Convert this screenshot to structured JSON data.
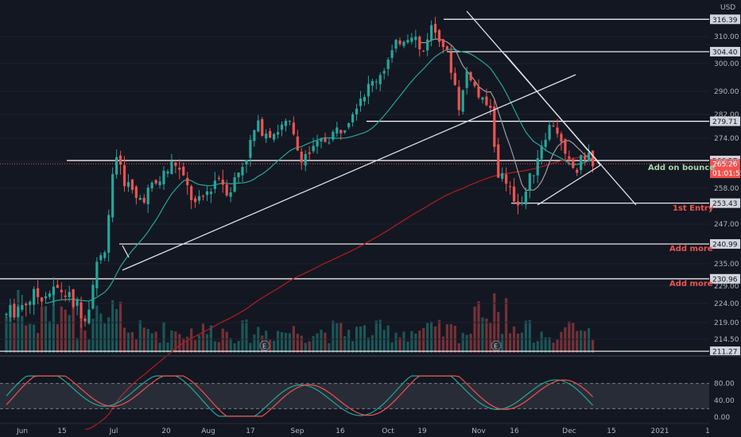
{
  "chart_data": {
    "type": "candlestick",
    "currency": "USD",
    "price_axis_ticks": [
      310,
      300,
      290,
      282,
      274,
      266,
      258,
      247,
      235,
      229,
      224,
      219,
      214.5
    ],
    "price_axis_tick_labels": [
      "310.00",
      "300.00",
      "290.00",
      "282.00",
      "274.00",
      "266.00",
      "258.00",
      "247.00",
      "235.00",
      "229.00",
      "224.00",
      "219.00",
      "214.50"
    ],
    "ylim": [
      210,
      318
    ],
    "x_tick_labels": [
      "Jun",
      "15",
      "Jul",
      "20",
      "Aug",
      "17",
      "Sep",
      "16",
      "Oct",
      "19",
      "Nov",
      "16",
      "Dec",
      "15",
      "2021",
      "1"
    ],
    "price_levels": [
      {
        "value": 316.39,
        "label": "316.39"
      },
      {
        "value": 304.4,
        "label": "304.40"
      },
      {
        "value": 279.71,
        "label": "279.71"
      },
      {
        "value": 266.27,
        "label": "266.27"
      },
      {
        "value": 253.43,
        "label": "253.43"
      },
      {
        "value": 240.99,
        "label": "240.99"
      },
      {
        "value": 230.96,
        "label": "230.96"
      },
      {
        "value": 211.27,
        "label": "211.27"
      }
    ],
    "last_price": {
      "value": 265.26,
      "label": "265.26",
      "countdown": "01:01:55"
    },
    "annotations": [
      {
        "text": "Add on bounce",
        "color": "#a5d6a7"
      },
      {
        "text": "1st Entry",
        "color": "#ef5350"
      },
      {
        "text": "Add more",
        "color": "#ef5350"
      },
      {
        "text": "Add more",
        "color": "#ef5350"
      }
    ],
    "earnings_markers": [
      "E",
      "E"
    ],
    "stoch_axis_ticks": [
      80,
      40,
      0
    ],
    "stoch_axis_tick_labels": [
      "80.00",
      "40.00",
      "0.00"
    ],
    "colors": {
      "up": "#26a69a",
      "down": "#ef5350",
      "ma_red": "#b71c1c",
      "ma_green": "#26a69a",
      "ma_grey": "#9e9e9e",
      "level": "#ffffff",
      "stoch_k": "#26a69a",
      "stoch_d": "#ef5350"
    }
  }
}
